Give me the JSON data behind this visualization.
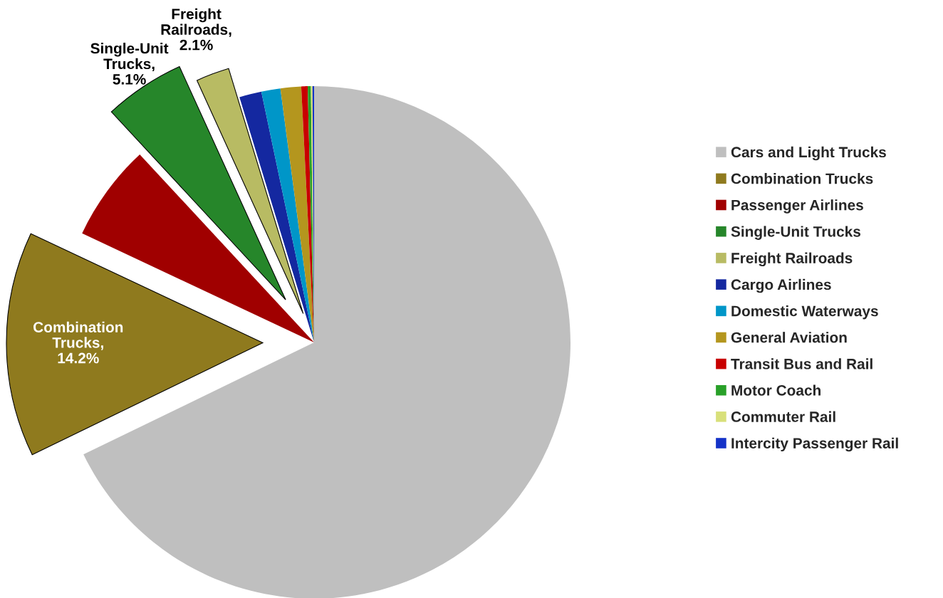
{
  "chart_data": {
    "type": "pie",
    "categories": [
      "Cars and Light Trucks",
      "Combination Trucks",
      "Passenger Airlines",
      "Single-Unit Trucks",
      "Freight Railroads",
      "Cargo Airlines",
      "Domestic Waterways",
      "General Aviation",
      "Transit Bus and Rail",
      "Motor Coach",
      "Commuter Rail",
      "Intercity Passenger Rail"
    ],
    "values": [
      67.8,
      14.2,
      6.1,
      5.1,
      2.1,
      1.4,
      1.2,
      1.3,
      0.4,
      0.2,
      0.1,
      0.1
    ],
    "colors": [
      "#bfbfbf",
      "#8f7a1e",
      "#a00000",
      "#26862a",
      "#b8bb63",
      "#1428a0",
      "#0096c8",
      "#b4961e",
      "#c80000",
      "#28a028",
      "#d8e07a",
      "#1432c8"
    ],
    "value_labels": [
      null,
      "Combination\nTrucks,\n14.2%",
      null,
      "Single-Unit\nTrucks,\n5.1%",
      "Freight\nRailroads,\n2.1%",
      null,
      null,
      null,
      null,
      null,
      null,
      null
    ],
    "legend": "right"
  }
}
